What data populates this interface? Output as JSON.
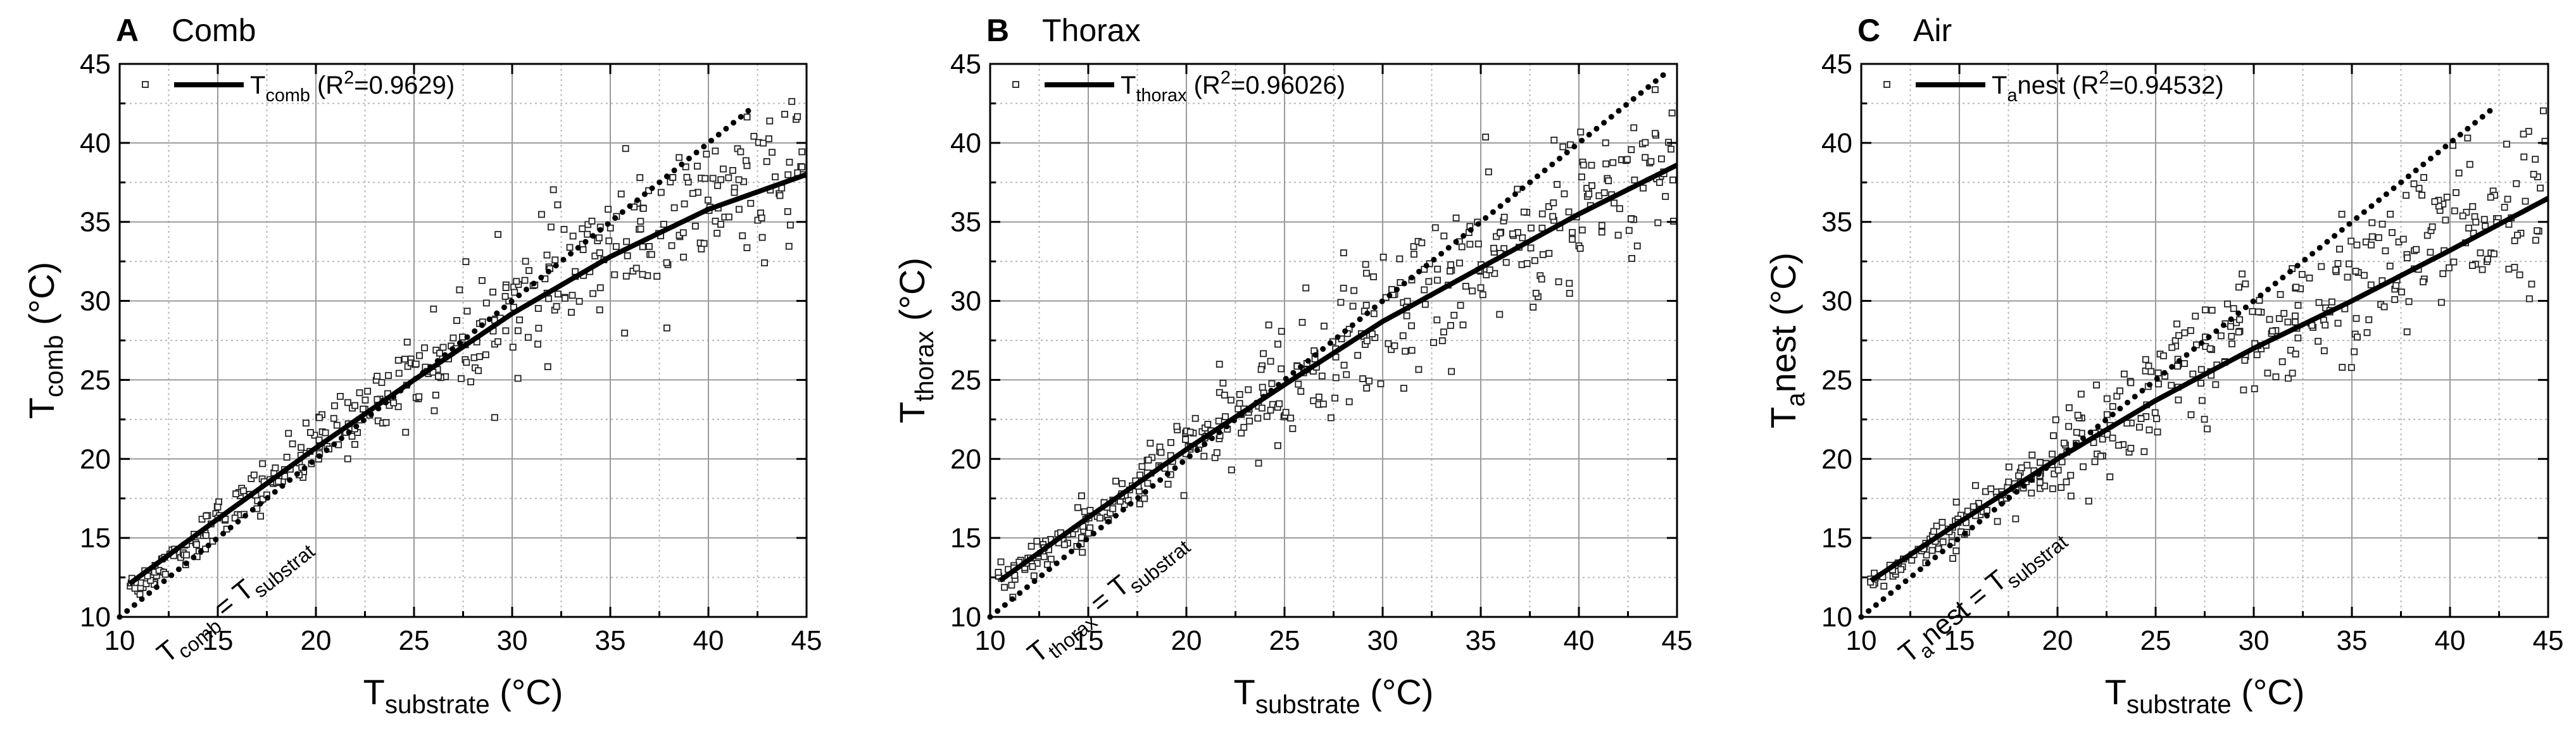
{
  "chart_data": [
    {
      "type": "scatter",
      "panel_letter": "A",
      "panel_title": "Comb",
      "xlabel": {
        "base": "T",
        "sub": "substrate",
        "tail": " (°C)"
      },
      "ylabel": {
        "base": "T",
        "sub": "comb",
        "tail": " (°C)"
      },
      "xlim": [
        10,
        45
      ],
      "ylim": [
        10,
        45
      ],
      "x_ticks": [
        10,
        15,
        20,
        25,
        30,
        35,
        40,
        45
      ],
      "y_ticks": [
        10,
        15,
        20,
        25,
        30,
        35,
        40,
        45
      ],
      "grid": true,
      "legend": {
        "base": "T",
        "sub": "comb",
        "sup_pre": " (R",
        "sup": "2",
        "tail": "=0.9629)",
        "position": "top-left"
      },
      "fit_curve": {
        "x": [
          10.5,
          15,
          20,
          25,
          30,
          35,
          40,
          45
        ],
        "y": [
          12.1,
          16.2,
          20.7,
          25.0,
          29.2,
          32.8,
          35.8,
          38.0
        ]
      },
      "identity_line": {
        "x": [
          10,
          42.2
        ],
        "y": [
          10,
          42.2
        ],
        "label": {
          "base": "T",
          "sub": "comb",
          "mid": " = T",
          "sub2": "substrat"
        }
      },
      "scatter_summary": {
        "x": [
          10.8,
          11.5,
          12.2,
          13.0,
          13.8,
          14.5,
          15.2,
          16.0,
          16.8,
          17.5,
          18.3,
          19.0,
          19.8,
          20.5,
          21.3,
          22.0,
          22.8,
          23.5,
          24.3,
          25.0,
          25.8,
          26.5,
          27.3,
          28.0,
          28.8,
          29.5,
          30.3,
          31.0,
          31.8,
          32.5,
          33.3,
          34.0,
          34.8,
          35.5,
          36.3,
          37.0,
          37.8,
          38.5,
          39.3,
          40.0,
          40.8,
          41.5,
          42.3,
          43.0,
          43.8,
          44.5
        ],
        "y": [
          12.0,
          12.6,
          13.4,
          14.1,
          14.8,
          15.6,
          16.4,
          17.0,
          17.8,
          18.5,
          19.2,
          19.9,
          20.7,
          21.3,
          22.0,
          22.8,
          23.4,
          24.1,
          24.8,
          25.5,
          26.0,
          26.8,
          27.3,
          28.0,
          28.6,
          29.2,
          29.7,
          30.3,
          30.9,
          31.4,
          31.9,
          32.5,
          32.9,
          33.4,
          33.9,
          34.4,
          34.8,
          35.2,
          35.6,
          36.0,
          36.4,
          36.8,
          37.1,
          37.4,
          37.7,
          38.0
        ],
        "spread": [
          0.4,
          0.4,
          0.5,
          0.5,
          0.6,
          0.6,
          0.6,
          0.7,
          0.7,
          0.8,
          0.8,
          0.9,
          0.9,
          1.0,
          1.0,
          1.1,
          1.2,
          1.3,
          1.5,
          1.6,
          1.8,
          2.0,
          2.0,
          2.0,
          2.0,
          2.1,
          2.1,
          2.2,
          2.2,
          2.3,
          2.3,
          2.4,
          2.4,
          2.5,
          2.5,
          2.5,
          2.5,
          2.5,
          2.5,
          2.5,
          2.4,
          2.4,
          2.3,
          2.3,
          2.2,
          2.2
        ]
      }
    },
    {
      "type": "scatter",
      "panel_letter": "B",
      "panel_title": "Thorax",
      "xlabel": {
        "base": "T",
        "sub": "substrate",
        "tail": " (°C)"
      },
      "ylabel": {
        "base": "T",
        "sub": "thorax",
        "tail": " (°C)"
      },
      "xlim": [
        10,
        45
      ],
      "ylim": [
        10,
        45
      ],
      "x_ticks": [
        10,
        15,
        20,
        25,
        30,
        35,
        40,
        45
      ],
      "y_ticks": [
        10,
        15,
        20,
        25,
        30,
        35,
        40,
        45
      ],
      "grid": true,
      "legend": {
        "base": "T",
        "sub": "thorax",
        "sup_pre": " (R",
        "sup": "2",
        "tail": "=0.96026)",
        "position": "top-left"
      },
      "fit_curve": {
        "x": [
          10.5,
          15,
          20,
          25,
          30,
          35,
          40,
          45
        ],
        "y": [
          12.3,
          16.3,
          20.6,
          24.7,
          28.7,
          32.1,
          35.5,
          38.6
        ]
      },
      "identity_line": {
        "x": [
          10,
          44.6
        ],
        "y": [
          10,
          44.6
        ],
        "label": {
          "base": "T",
          "sub": "thorax",
          "mid": " = T",
          "sub2": "substrat"
        }
      },
      "scatter_summary": {
        "x": [
          10.8,
          11.5,
          12.2,
          13.0,
          13.8,
          14.5,
          15.2,
          16.0,
          16.8,
          17.5,
          18.3,
          19.0,
          19.8,
          20.5,
          21.3,
          22.0,
          22.8,
          23.5,
          24.3,
          25.0,
          25.8,
          26.5,
          27.3,
          28.0,
          28.8,
          29.5,
          30.3,
          31.0,
          31.8,
          32.5,
          33.3,
          34.0,
          34.8,
          35.5,
          36.3,
          37.0,
          37.8,
          38.5,
          39.3,
          40.0,
          40.8,
          41.5,
          42.3,
          43.0,
          43.8,
          44.5
        ],
        "y": [
          12.4,
          13.0,
          13.6,
          14.3,
          14.9,
          15.6,
          16.3,
          17.0,
          17.7,
          18.4,
          19.1,
          19.8,
          20.5,
          21.1,
          21.7,
          22.4,
          23.0,
          23.6,
          24.2,
          24.8,
          25.4,
          26.0,
          26.6,
          27.2,
          27.8,
          28.4,
          29.0,
          29.5,
          30.1,
          30.6,
          31.2,
          31.7,
          32.2,
          32.7,
          33.2,
          33.7,
          34.2,
          34.7,
          35.2,
          35.7,
          36.2,
          36.7,
          37.2,
          37.6,
          38.1,
          38.5
        ],
        "spread": [
          0.5,
          0.5,
          0.6,
          0.6,
          0.7,
          1.2,
          1.0,
          0.8,
          0.8,
          0.9,
          1.0,
          1.0,
          1.1,
          1.1,
          1.2,
          1.3,
          1.5,
          1.8,
          2.0,
          2.3,
          2.5,
          2.6,
          2.6,
          2.6,
          2.5,
          2.6,
          2.6,
          2.7,
          2.7,
          2.7,
          2.6,
          2.6,
          2.7,
          2.7,
          2.6,
          2.5,
          2.6,
          2.6,
          2.5,
          2.5,
          2.4,
          2.4,
          2.4,
          2.3,
          2.3,
          2.2
        ]
      }
    },
    {
      "type": "scatter",
      "panel_letter": "C",
      "panel_title": "Air",
      "xlabel": {
        "base": "T",
        "sub": "substrate",
        "tail": " (°C)"
      },
      "ylabel": {
        "base": "T",
        "sub": "a",
        "tail": "nest (°C)"
      },
      "xlim": [
        10,
        45
      ],
      "ylim": [
        10,
        45
      ],
      "x_ticks": [
        10,
        15,
        20,
        25,
        30,
        35,
        40,
        45
      ],
      "y_ticks": [
        10,
        15,
        20,
        25,
        30,
        35,
        40,
        45
      ],
      "grid": true,
      "legend": {
        "base": "T",
        "sub": "a",
        "mid": "nest",
        "sup_pre": " (R",
        "sup": "2",
        "tail": "=0.94532)",
        "position": "top-left"
      },
      "fit_curve": {
        "x": [
          10.5,
          15,
          20,
          25,
          30,
          35,
          40,
          45
        ],
        "y": [
          12.3,
          16.0,
          20.0,
          23.7,
          27.0,
          30.0,
          33.2,
          36.5
        ]
      },
      "identity_line": {
        "x": [
          10,
          42.2
        ],
        "y": [
          10,
          42.2
        ],
        "label": {
          "base": "T",
          "sub": "a",
          "mid": "nest = T",
          "sub2": "substrat"
        }
      },
      "scatter_summary": {
        "x": [
          10.8,
          11.5,
          12.2,
          13.0,
          13.8,
          14.5,
          15.2,
          16.0,
          16.8,
          17.5,
          18.3,
          19.0,
          19.8,
          20.5,
          21.3,
          22.0,
          22.8,
          23.5,
          24.3,
          25.0,
          25.8,
          26.5,
          27.3,
          28.0,
          28.8,
          29.5,
          30.3,
          31.0,
          31.8,
          32.5,
          33.3,
          34.0,
          34.8,
          35.5,
          36.3,
          37.0,
          37.8,
          38.5,
          39.3,
          40.0,
          40.8,
          41.5,
          42.3,
          43.0,
          43.8,
          44.5
        ],
        "y": [
          12.4,
          13.0,
          13.6,
          14.2,
          14.9,
          15.5,
          16.2,
          16.8,
          17.5,
          18.0,
          18.7,
          19.3,
          19.9,
          20.5,
          21.1,
          21.7,
          22.3,
          22.9,
          23.4,
          24.0,
          24.5,
          25.0,
          25.5,
          26.0,
          26.6,
          27.1,
          27.6,
          28.1,
          28.6,
          29.0,
          29.5,
          30.0,
          30.5,
          31.0,
          31.5,
          32.0,
          32.6,
          33.0,
          33.6,
          34.1,
          34.6,
          35.1,
          35.6,
          36.0,
          36.5,
          37.0
        ],
        "spread": [
          0.4,
          0.4,
          0.5,
          0.5,
          0.6,
          0.7,
          0.8,
          0.9,
          0.9,
          1.0,
          1.0,
          1.1,
          1.2,
          1.4,
          1.6,
          1.8,
          2.0,
          2.2,
          2.4,
          2.5,
          2.5,
          2.5,
          2.5,
          2.5,
          2.4,
          2.3,
          2.3,
          2.3,
          2.4,
          2.4,
          2.5,
          2.6,
          2.6,
          2.7,
          2.7,
          2.7,
          2.8,
          2.8,
          2.8,
          2.8,
          2.8,
          2.8,
          2.8,
          2.7,
          2.7,
          2.6
        ]
      }
    }
  ]
}
